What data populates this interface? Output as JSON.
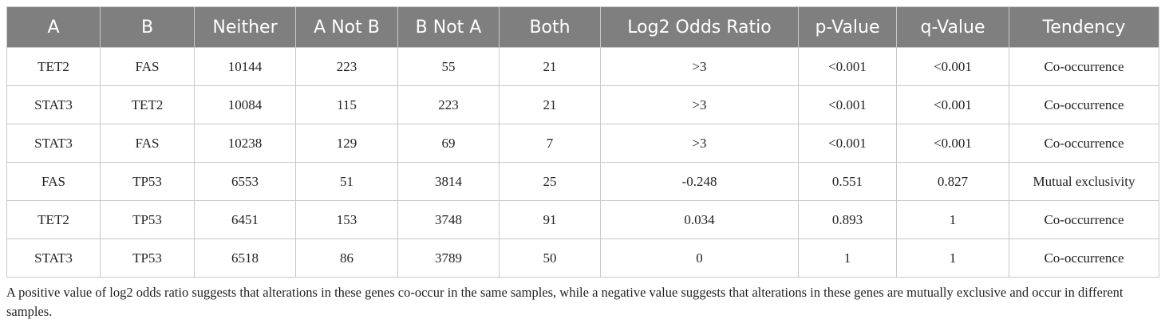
{
  "table": {
    "header": [
      "A",
      "B",
      "Neither",
      "A Not B",
      "B Not A",
      "Both",
      "Log2 Odds Ratio",
      "p-Value",
      "q-Value",
      "Tendency"
    ],
    "rows": [
      [
        "TET2",
        "FAS",
        "10144",
        "223",
        "55",
        "21",
        ">3",
        "<0.001",
        "<0.001",
        "Co-occurrence"
      ],
      [
        "STAT3",
        "TET2",
        "10084",
        "115",
        "223",
        "21",
        ">3",
        "<0.001",
        "<0.001",
        "Co-occurrence"
      ],
      [
        "STAT3",
        "FAS",
        "10238",
        "129",
        "69",
        "7",
        ">3",
        "<0.001",
        "<0.001",
        "Co-occurrence"
      ],
      [
        "FAS",
        "TP53",
        "6553",
        "51",
        "3814",
        "25",
        "-0.248",
        "0.551",
        "0.827",
        "Mutual exclusivity"
      ],
      [
        "TET2",
        "TP53",
        "6451",
        "153",
        "3748",
        "91",
        "0.034",
        "0.893",
        "1",
        "Co-occurrence"
      ],
      [
        "STAT3",
        "TP53",
        "6518",
        "86",
        "3789",
        "50",
        "0",
        "1",
        "1",
        "Co-occurrence"
      ]
    ],
    "footnote": "A positive value of log2 odds ratio suggests that alterations in these genes co-occur in the same samples, while a negative value suggests that alterations in these genes are mutually exclusive and occur in different samples."
  }
}
